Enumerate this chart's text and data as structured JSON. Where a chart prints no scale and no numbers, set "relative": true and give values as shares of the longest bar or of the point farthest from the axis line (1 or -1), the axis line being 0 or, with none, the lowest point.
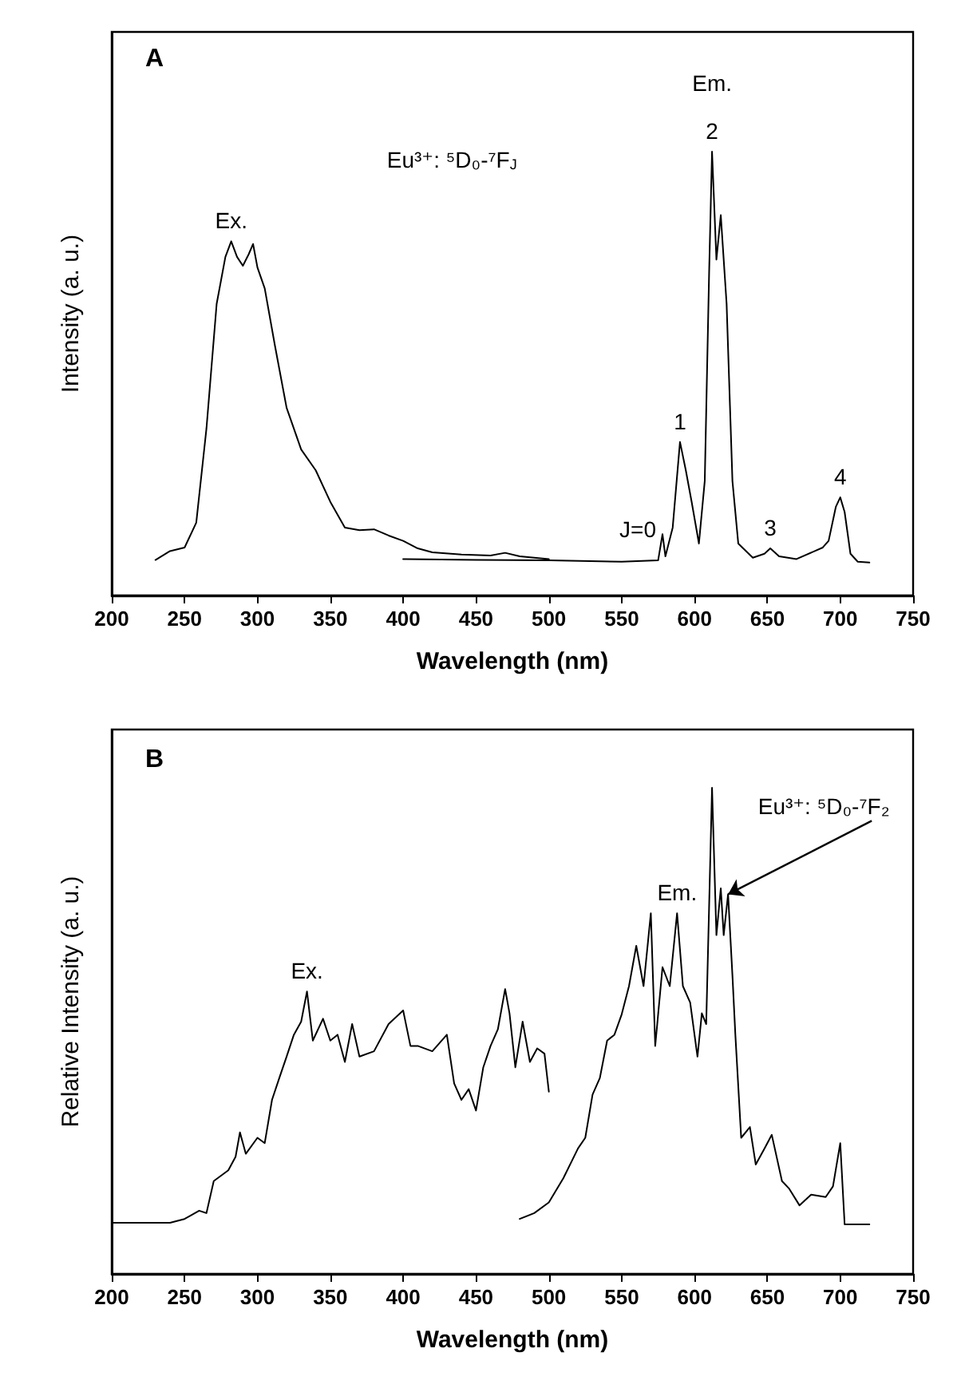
{
  "chart_data": [
    {
      "type": "line",
      "title": "A",
      "xlabel": "Wavelength (nm)",
      "ylabel": "Intensity (a. u.)",
      "relative": true,
      "xlim": [
        200,
        750
      ],
      "xticks": [
        200,
        250,
        300,
        350,
        400,
        450,
        500,
        550,
        600,
        650,
        700,
        750
      ],
      "grid": false,
      "marker": "none",
      "line_style": "solid",
      "series": [
        {
          "color": "#000000",
          "x": [
            230,
            240,
            250,
            258,
            265,
            272,
            278,
            282,
            286,
            290,
            294,
            297,
            300,
            305,
            312,
            320,
            330,
            340,
            350,
            360,
            370,
            380,
            390,
            400,
            410,
            420,
            440,
            460,
            470,
            480,
            500
          ],
          "values": [
            0.08,
            0.1,
            0.108,
            0.164,
            0.376,
            0.657,
            0.763,
            0.798,
            0.763,
            0.743,
            0.769,
            0.792,
            0.739,
            0.692,
            0.563,
            0.423,
            0.329,
            0.282,
            0.211,
            0.153,
            0.147,
            0.149,
            0.135,
            0.123,
            0.106,
            0.097,
            0.092,
            0.09,
            0.096,
            0.088,
            0.082
          ]
        },
        {
          "color": "#000000",
          "x": [
            400,
            450,
            500,
            550,
            575,
            578,
            580,
            585,
            590,
            594,
            598,
            603,
            607,
            610,
            612,
            615,
            618,
            622,
            626,
            630,
            640,
            648,
            652,
            658,
            670,
            688,
            692,
            697,
            700,
            703,
            707,
            712,
            720
          ],
          "values": [
            0.082,
            0.08,
            0.079,
            0.076,
            0.079,
            0.138,
            0.088,
            0.153,
            0.346,
            0.282,
            0.211,
            0.117,
            0.258,
            0.728,
            1.0,
            0.757,
            0.857,
            0.657,
            0.258,
            0.117,
            0.085,
            0.094,
            0.106,
            0.088,
            0.082,
            0.108,
            0.123,
            0.2,
            0.221,
            0.188,
            0.094,
            0.076,
            0.074
          ]
        }
      ],
      "annotations": [
        {
          "text": "Ex.",
          "x": 282,
          "y": 0.798
        },
        "Eu³⁺: ⁵D₀-⁷F$_{J}$",
        {
          "text": "J=0",
          "x": 578,
          "y": 0.138
        },
        {
          "text": "1",
          "x": 590,
          "y": 0.346
        },
        {
          "text": "2",
          "x": 612,
          "y": 1.0
        },
        {
          "text": "Em.",
          "x": 612,
          "y": 1.0
        },
        {
          "text": "3",
          "x": 652,
          "y": 0.106
        },
        {
          "text": "4",
          "x": 700,
          "y": 0.221
        }
      ]
    },
    {
      "type": "line",
      "title": "B",
      "xlabel": "Wavelength (nm)",
      "ylabel": "Relative Intensity (a. u.)",
      "relative": true,
      "xlim": [
        200,
        750
      ],
      "xticks": [
        200,
        250,
        300,
        350,
        400,
        450,
        500,
        550,
        600,
        650,
        700,
        750
      ],
      "grid": false,
      "marker": "none",
      "line_style": "solid",
      "series": [
        {
          "color": "#000000",
          "x": [
            200,
            240,
            250,
            260,
            265,
            270,
            275,
            280,
            285,
            288,
            292,
            300,
            305,
            310,
            315,
            320,
            325,
            330,
            334,
            338,
            345,
            350,
            355,
            360,
            365,
            370,
            380,
            390,
            400,
            405,
            410,
            420,
            430,
            435,
            440,
            445,
            450,
            455,
            460,
            465,
            470,
            473,
            477,
            482,
            487,
            492,
            497,
            500
          ],
          "values": [
            0.105,
            0.105,
            0.113,
            0.13,
            0.125,
            0.191,
            0.202,
            0.213,
            0.241,
            0.291,
            0.247,
            0.28,
            0.269,
            0.358,
            0.403,
            0.447,
            0.492,
            0.519,
            0.581,
            0.48,
            0.525,
            0.48,
            0.492,
            0.436,
            0.514,
            0.447,
            0.458,
            0.514,
            0.542,
            0.469,
            0.469,
            0.458,
            0.492,
            0.392,
            0.358,
            0.38,
            0.336,
            0.425,
            0.469,
            0.503,
            0.586,
            0.536,
            0.425,
            0.519,
            0.436,
            0.464,
            0.453,
            0.375
          ]
        },
        {
          "color": "#000000",
          "x": [
            480,
            490,
            500,
            510,
            520,
            525,
            530,
            535,
            540,
            545,
            550,
            555,
            560,
            565,
            570,
            573,
            578,
            583,
            588,
            592,
            597,
            602,
            605,
            608,
            612,
            615,
            618,
            620,
            623,
            626,
            628,
            632,
            638,
            642,
            648,
            653,
            660,
            665,
            672,
            680,
            690,
            695,
            700,
            703,
            720
          ],
          "values": [
            0.113,
            0.125,
            0.147,
            0.197,
            0.258,
            0.28,
            0.369,
            0.403,
            0.48,
            0.492,
            0.534,
            0.592,
            0.675,
            0.592,
            0.742,
            0.469,
            0.631,
            0.592,
            0.742,
            0.592,
            0.558,
            0.447,
            0.536,
            0.514,
            1.0,
            0.697,
            0.793,
            0.697,
            0.781,
            0.614,
            0.492,
            0.28,
            0.302,
            0.225,
            0.258,
            0.286,
            0.191,
            0.175,
            0.141,
            0.163,
            0.158,
            0.18,
            0.269,
            0.102,
            0.102
          ]
        }
      ],
      "annotations": [
        {
          "text": "Ex.",
          "x": 334,
          "y": 0.581
        },
        {
          "text": "Em.",
          "x": 588,
          "y": 0.742
        },
        {
          "text": "Eu³⁺: ⁵D₀-⁷F₂",
          "x": 623,
          "y": 0.781
        }
      ]
    }
  ]
}
